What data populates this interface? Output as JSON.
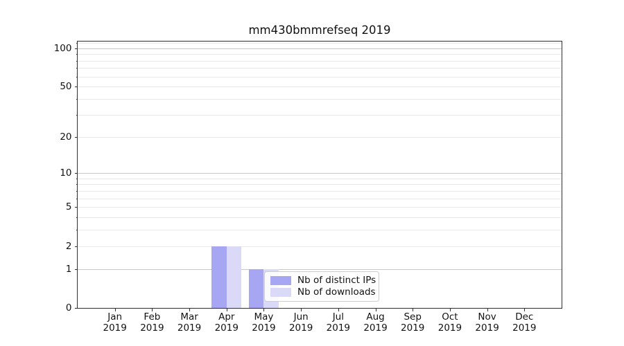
{
  "chart_data": {
    "type": "bar",
    "title": "mm430bmmrefseq 2019",
    "categories": [
      {
        "month": "Jan",
        "year": "2019"
      },
      {
        "month": "Feb",
        "year": "2019"
      },
      {
        "month": "Mar",
        "year": "2019"
      },
      {
        "month": "Apr",
        "year": "2019"
      },
      {
        "month": "May",
        "year": "2019"
      },
      {
        "month": "Jun",
        "year": "2019"
      },
      {
        "month": "Jul",
        "year": "2019"
      },
      {
        "month": "Aug",
        "year": "2019"
      },
      {
        "month": "Sep",
        "year": "2019"
      },
      {
        "month": "Oct",
        "year": "2019"
      },
      {
        "month": "Nov",
        "year": "2019"
      },
      {
        "month": "Dec",
        "year": "2019"
      }
    ],
    "series": [
      {
        "name": "Nb of distinct IPs",
        "color": "#a6a6f2",
        "values": [
          0,
          0,
          0,
          2,
          1,
          0,
          0,
          0,
          0,
          0,
          0,
          0
        ]
      },
      {
        "name": "Nb of downloads",
        "color": "#dadaf8",
        "values": [
          0,
          0,
          0,
          2,
          1,
          0,
          0,
          0,
          0,
          0,
          0,
          0
        ]
      }
    ],
    "y_axis": {
      "scale": "log1p",
      "ticks": [
        0,
        1,
        2,
        5,
        10,
        20,
        50,
        100
      ],
      "major_gridlines": [
        1,
        10,
        100
      ],
      "minor_gridlines": [
        2,
        3,
        4,
        5,
        6,
        7,
        8,
        9,
        20,
        30,
        40,
        50,
        60,
        70,
        80,
        90,
        110
      ],
      "ylim": [
        0,
        113
      ]
    },
    "legend": {
      "position": "lower center"
    },
    "grid": true,
    "xlabel": "",
    "ylabel": ""
  },
  "colors": {
    "grid_major": "#c6c6c6",
    "grid_minor": "#e9e9e9",
    "spine": "#2e2e2e",
    "text": "#111111",
    "legend_border": "#cccccc"
  }
}
